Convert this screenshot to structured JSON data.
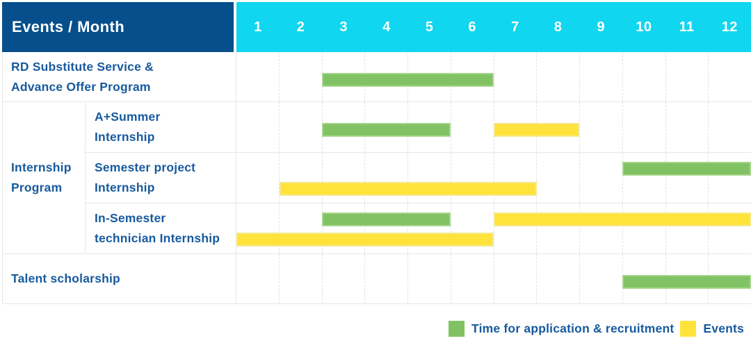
{
  "page": {
    "background": "#FFFFFF"
  },
  "header": {
    "label": "Events / Month"
  },
  "left_column": {
    "group_label": "Internship\nProgram"
  },
  "colors": {
    "header_navy": "#064F8C",
    "header_cyan": "#10D6EF",
    "label_text": "#175A9E",
    "application_fill": "#81C364",
    "application_border": "#A9D58E",
    "events_fill": "#FFE33B",
    "events_border": "#F6E88D",
    "grid_line": "#E6E6E6",
    "column_line": "#E2E2E2"
  },
  "chart_data": {
    "type": "bar",
    "subtype": "gantt",
    "title": "Events / Month",
    "x_axis": {
      "label": "Month",
      "ticks": [
        "1",
        "2",
        "3",
        "4",
        "5",
        "6",
        "7",
        "8",
        "9",
        "10",
        "11",
        "12"
      ],
      "range": [
        1,
        12
      ]
    },
    "grid": true,
    "rows": [
      {
        "label": "RD Substitute Service &\nAdvance Offer Program",
        "group": null,
        "bars": [
          {
            "series": "application",
            "start_month": 3,
            "end_month": 6,
            "lane": "single"
          }
        ]
      },
      {
        "label": "A+Summer\nInternship",
        "group": "Internship Program",
        "bars": [
          {
            "series": "application",
            "start_month": 3,
            "end_month": 5,
            "lane": "single"
          },
          {
            "series": "events",
            "start_month": 7,
            "end_month": 8,
            "lane": "single"
          }
        ]
      },
      {
        "label": "Semester project\nInternship",
        "group": "Internship Program",
        "bars": [
          {
            "series": "application",
            "start_month": 10,
            "end_month": 12,
            "lane": "top"
          },
          {
            "series": "events",
            "start_month": 2,
            "end_month": 7,
            "lane": "bottom"
          }
        ]
      },
      {
        "label": "In-Semester\ntechnician Internship",
        "group": "Internship Program",
        "bars": [
          {
            "series": "application",
            "start_month": 3,
            "end_month": 5,
            "lane": "top"
          },
          {
            "series": "events",
            "start_month": 7,
            "end_month": 12,
            "lane": "top"
          },
          {
            "series": "events",
            "start_month": 1,
            "end_month": 6,
            "lane": "bottom"
          }
        ]
      },
      {
        "label": "Talent scholarship",
        "group": null,
        "bars": [
          {
            "series": "application",
            "start_month": 10,
            "end_month": 12,
            "lane": "single"
          }
        ]
      }
    ],
    "legend": [
      {
        "series": "application",
        "label": "Time for application & recruitment",
        "color": "#81C364"
      },
      {
        "series": "events",
        "label": "Events",
        "color": "#FFE33B"
      }
    ],
    "legend_position": "bottom-right"
  }
}
